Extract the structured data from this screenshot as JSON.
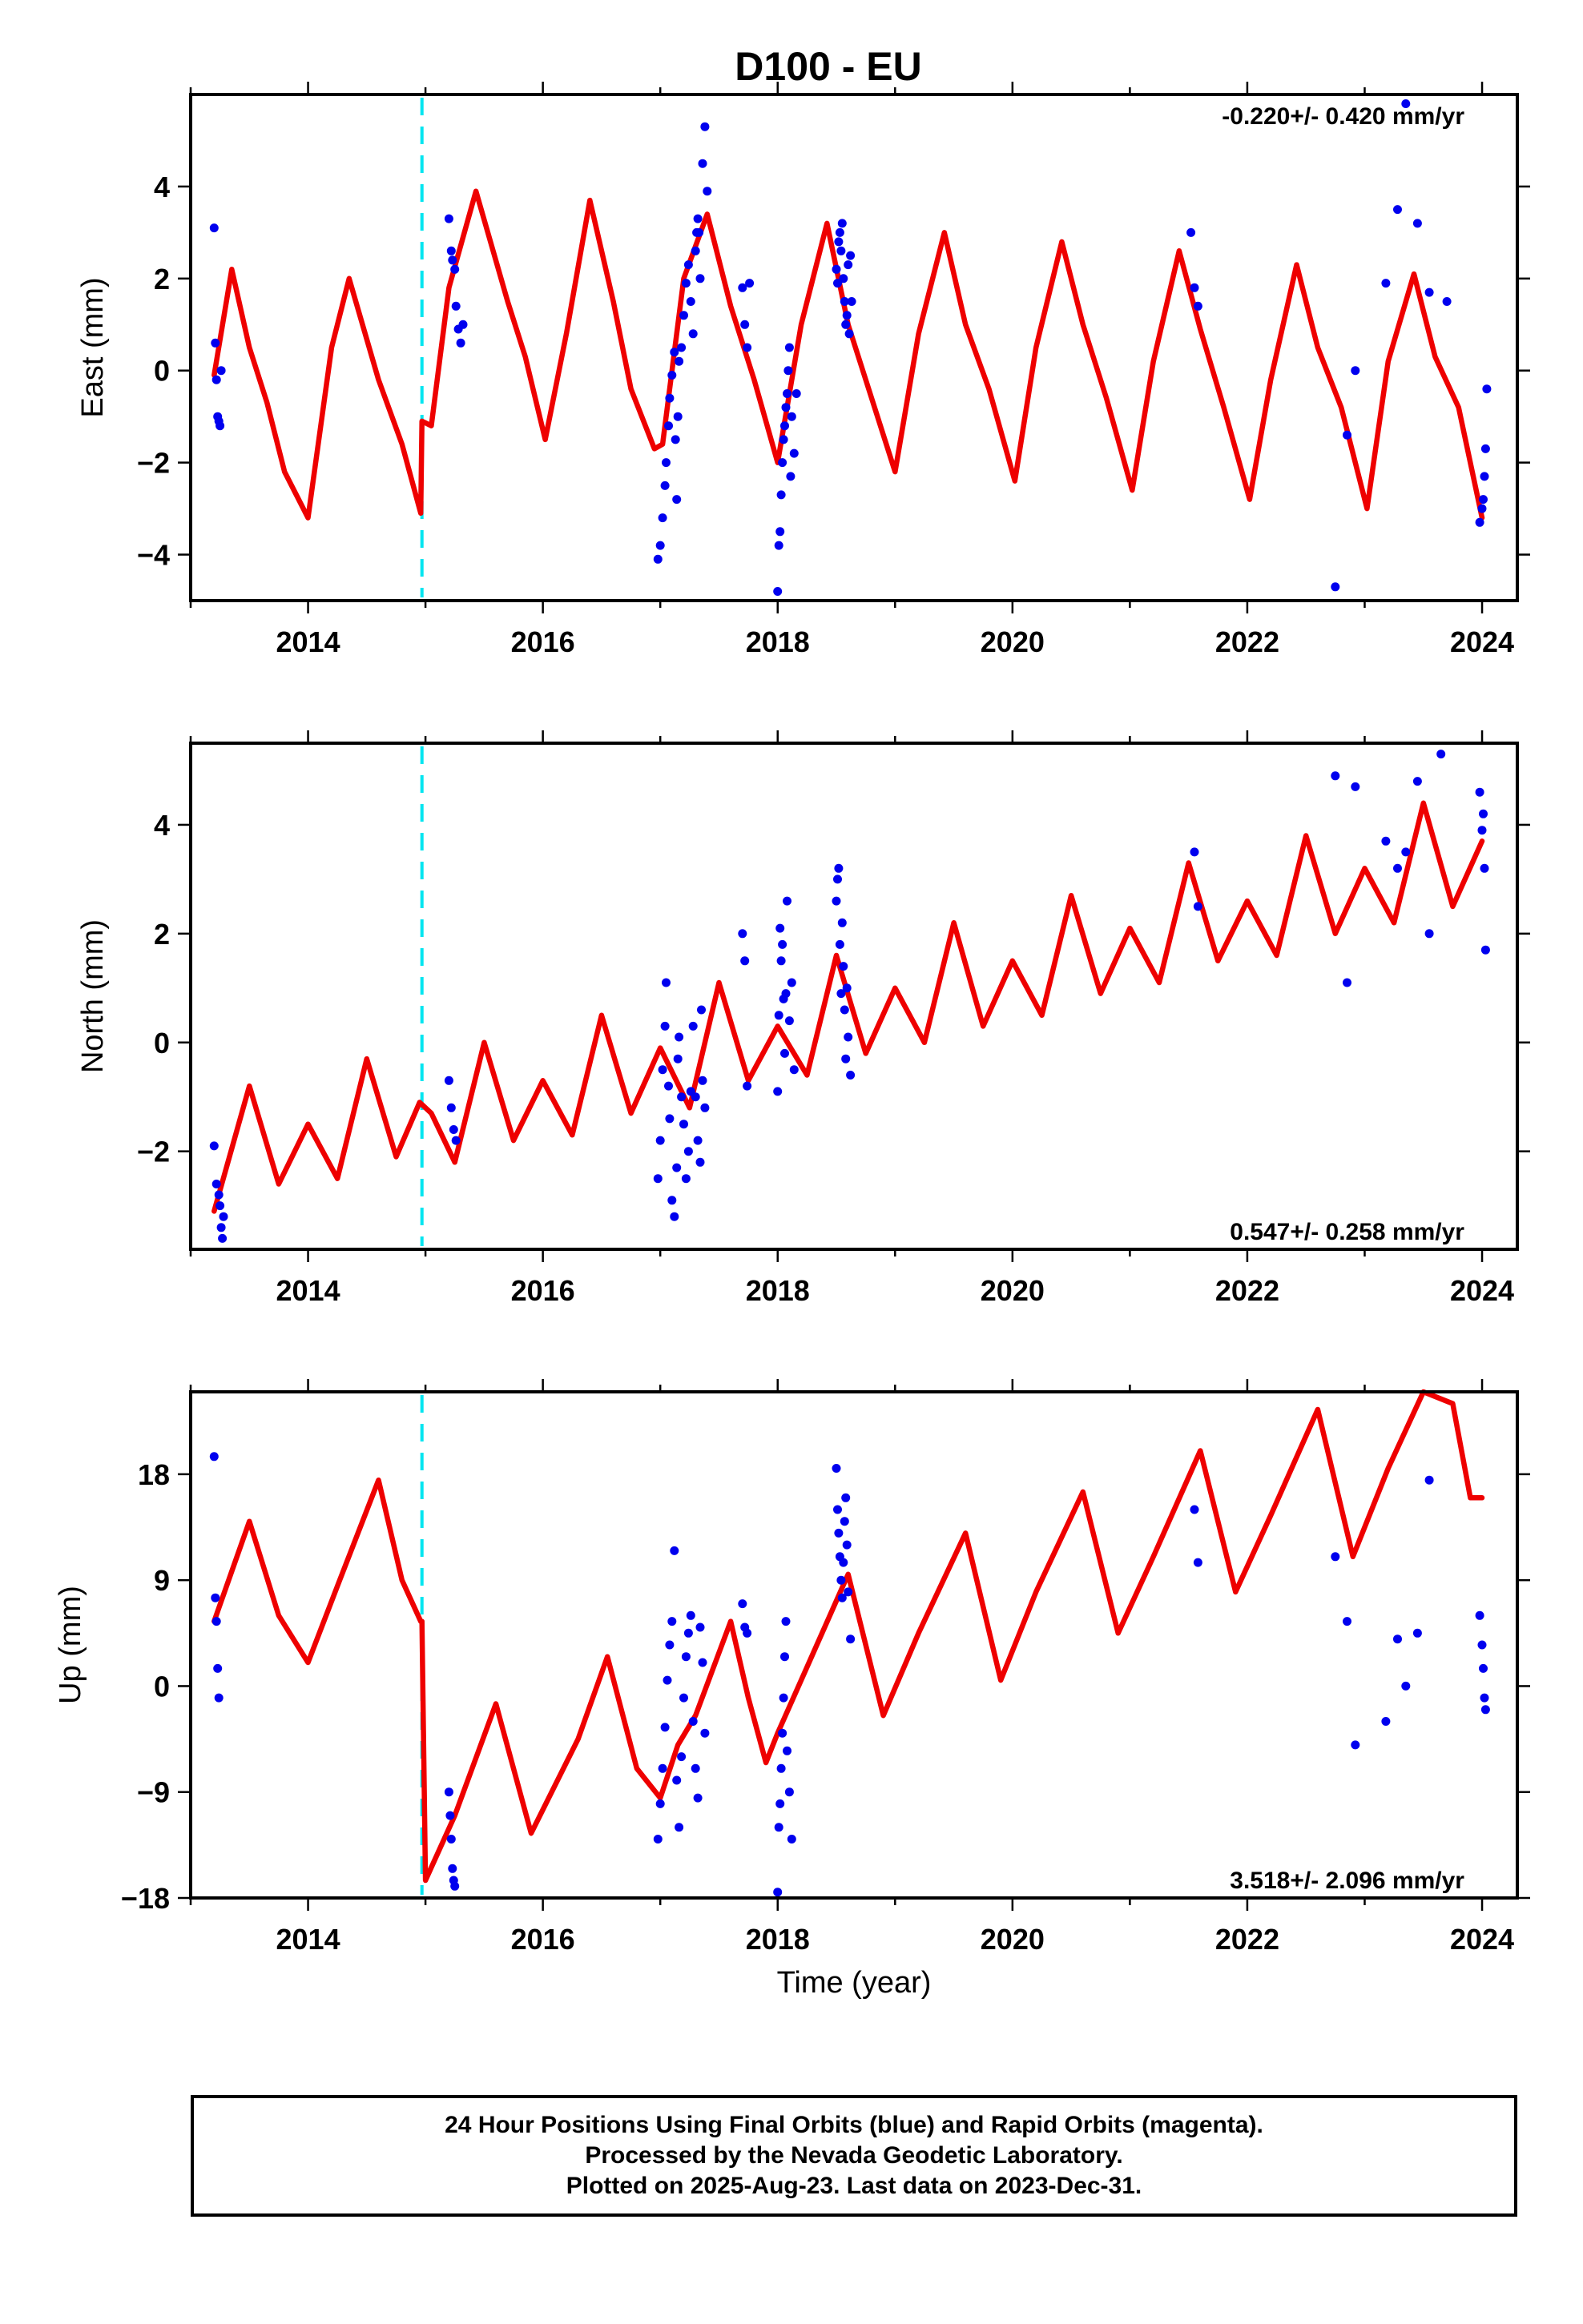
{
  "title": "D100 - EU",
  "xlabel": "Time (year)",
  "footer": {
    "line1": "24 Hour Positions Using Final Orbits (blue) and Rapid Orbits (magenta).",
    "line2": "Processed by the Nevada Geodetic Laboratory.",
    "line3": "Plotted on 2025-Aug-23. Last data on 2023-Dec-31."
  },
  "colors": {
    "final_orbits": "#0000ee",
    "fit": "#ee0000",
    "offset": "#00e5f0"
  },
  "chart_data": [
    {
      "type": "scatter",
      "panel": "east",
      "ylabel": "East (mm)",
      "rate": "-0.220+/- 0.420 mm/yr",
      "rate_position": "top-right",
      "xlim": [
        2013.0,
        2024.3
      ],
      "ylim": [
        -5.0,
        6.0
      ],
      "xticks": [
        2014,
        2016,
        2018,
        2020,
        2022,
        2024
      ],
      "yticks": [
        -4,
        -2,
        0,
        2,
        4
      ],
      "ytick_labels": [
        "−4",
        "−2",
        "0",
        "2",
        "4"
      ],
      "offset_epoch": 2014.97,
      "fit": {
        "x": [
          2013.2,
          2013.35,
          2013.5,
          2013.65,
          2013.8,
          2014.0,
          2014.2,
          2014.35,
          2014.6,
          2014.8,
          2014.96,
          2014.97,
          2015.05,
          2015.2,
          2015.43,
          2015.7,
          2015.85,
          2016.02,
          2016.2,
          2016.4,
          2016.6,
          2016.75,
          2016.95,
          2017.02,
          2017.2,
          2017.4,
          2017.6,
          2017.8,
          2018.0,
          2018.2,
          2018.42,
          2018.6,
          2018.8,
          2019.0,
          2019.2,
          2019.42,
          2019.6,
          2019.8,
          2020.02,
          2020.2,
          2020.42,
          2020.6,
          2020.8,
          2021.02,
          2021.2,
          2021.42,
          2021.6,
          2021.8,
          2022.02,
          2022.2,
          2022.42,
          2022.6,
          2022.8,
          2023.02,
          2023.2,
          2023.42,
          2023.6,
          2023.8,
          2024.0
        ],
        "y": [
          -0.1,
          2.2,
          0.5,
          -0.7,
          -2.2,
          -3.2,
          0.5,
          2.0,
          -0.2,
          -1.6,
          -3.1,
          -1.1,
          -1.2,
          1.8,
          3.9,
          1.5,
          0.3,
          -1.5,
          0.8,
          3.7,
          1.5,
          -0.4,
          -1.7,
          -1.6,
          2.0,
          3.4,
          1.4,
          -0.2,
          -2.0,
          1.0,
          3.2,
          1.0,
          -0.6,
          -2.2,
          0.8,
          3.0,
          1.0,
          -0.4,
          -2.4,
          0.5,
          2.8,
          1.0,
          -0.6,
          -2.6,
          0.2,
          2.6,
          0.9,
          -0.8,
          -2.8,
          -0.2,
          2.3,
          0.5,
          -0.8,
          -3.0,
          0.2,
          2.1,
          0.3,
          -0.8,
          -3.2
        ]
      },
      "points": {
        "x": [
          2013.2,
          2013.21,
          2013.22,
          2013.23,
          2013.24,
          2013.25,
          2013.26,
          2015.2,
          2015.22,
          2015.23,
          2015.25,
          2015.26,
          2015.28,
          2015.3,
          2015.32,
          2016.98,
          2017.0,
          2017.02,
          2017.04,
          2017.05,
          2017.07,
          2017.08,
          2017.1,
          2017.12,
          2017.13,
          2017.14,
          2017.15,
          2017.16,
          2017.18,
          2017.2,
          2017.22,
          2017.24,
          2017.26,
          2017.28,
          2017.3,
          2017.31,
          2017.32,
          2017.33,
          2017.34,
          2017.36,
          2017.38,
          2017.4,
          2017.7,
          2017.72,
          2017.74,
          2017.76,
          2018.0,
          2018.01,
          2018.02,
          2018.03,
          2018.04,
          2018.05,
          2018.06,
          2018.07,
          2018.08,
          2018.09,
          2018.1,
          2018.11,
          2018.12,
          2018.14,
          2018.16,
          2018.5,
          2018.51,
          2018.52,
          2018.53,
          2018.54,
          2018.55,
          2018.56,
          2018.57,
          2018.58,
          2018.59,
          2018.6,
          2018.61,
          2018.62,
          2018.63,
          2021.52,
          2021.55,
          2021.58,
          2022.75,
          2022.85,
          2022.92,
          2023.18,
          2023.28,
          2023.35,
          2023.45,
          2023.55,
          2023.7,
          2023.98,
          2024.0,
          2024.01,
          2024.02,
          2024.03,
          2024.04
        ],
        "y": [
          3.1,
          0.6,
          -0.2,
          -1.0,
          -1.1,
          -1.2,
          0.0,
          3.3,
          2.6,
          2.4,
          2.2,
          1.4,
          0.9,
          0.6,
          1.0,
          -4.1,
          -3.8,
          -3.2,
          -2.5,
          -2.0,
          -1.2,
          -0.6,
          -0.1,
          0.4,
          -1.5,
          -2.8,
          -1.0,
          0.2,
          0.5,
          1.2,
          1.9,
          2.3,
          1.5,
          0.8,
          2.6,
          3.0,
          3.3,
          3.0,
          2.0,
          4.5,
          5.3,
          3.9,
          1.8,
          1.0,
          0.5,
          1.9,
          -4.8,
          -3.8,
          -3.5,
          -2.7,
          -2.0,
          -1.5,
          -1.2,
          -0.8,
          -0.5,
          0.0,
          0.5,
          -2.3,
          -1.0,
          -1.8,
          -0.5,
          2.2,
          1.9,
          2.8,
          3.0,
          2.6,
          3.2,
          2.0,
          1.5,
          1.0,
          1.2,
          2.3,
          0.8,
          2.5,
          1.5,
          3.0,
          1.8,
          1.4,
          -4.7,
          -1.4,
          0.0,
          1.9,
          3.5,
          5.8,
          3.2,
          1.7,
          1.5,
          -3.3,
          -3.0,
          -2.8,
          -2.3,
          -1.7,
          -0.4
        ]
      }
    },
    {
      "type": "scatter",
      "panel": "north",
      "ylabel": "North (mm)",
      "rate": "0.547+/- 0.258 mm/yr",
      "rate_position": "bottom-right",
      "xlim": [
        2013.0,
        2024.3
      ],
      "ylim": [
        -3.8,
        5.5
      ],
      "xticks": [
        2014,
        2016,
        2018,
        2020,
        2022,
        2024
      ],
      "yticks": [
        -2,
        0,
        2,
        4
      ],
      "ytick_labels": [
        "−2",
        "0",
        "2",
        "4"
      ],
      "offset_epoch": 2014.97,
      "fit": {
        "x": [
          2013.2,
          2013.5,
          2013.75,
          2014.0,
          2014.25,
          2014.5,
          2014.75,
          2014.95,
          2015.05,
          2015.25,
          2015.5,
          2015.75,
          2016.0,
          2016.25,
          2016.5,
          2016.75,
          2017.0,
          2017.25,
          2017.5,
          2017.75,
          2018.0,
          2018.25,
          2018.5,
          2018.75,
          2019.0,
          2019.25,
          2019.5,
          2019.75,
          2020.0,
          2020.25,
          2020.5,
          2020.75,
          2021.0,
          2021.25,
          2021.5,
          2021.75,
          2022.0,
          2022.25,
          2022.5,
          2022.75,
          2023.0,
          2023.25,
          2023.5,
          2023.75,
          2024.0
        ],
        "y": [
          -3.1,
          -0.8,
          -2.6,
          -1.5,
          -2.5,
          -0.3,
          -2.1,
          -1.1,
          -1.3,
          -2.2,
          0.0,
          -1.8,
          -0.7,
          -1.7,
          0.5,
          -1.3,
          -0.1,
          -1.2,
          1.1,
          -0.7,
          0.3,
          -0.6,
          1.6,
          -0.2,
          1.0,
          0.0,
          2.2,
          0.3,
          1.5,
          0.5,
          2.7,
          0.9,
          2.1,
          1.1,
          3.3,
          1.5,
          2.6,
          1.6,
          3.8,
          2.0,
          3.2,
          2.2,
          4.4,
          2.5,
          3.7
        ]
      },
      "points": {
        "x": [
          2013.2,
          2013.22,
          2013.24,
          2013.25,
          2013.26,
          2013.27,
          2013.28,
          2015.2,
          2015.22,
          2015.24,
          2015.26,
          2016.98,
          2017.0,
          2017.02,
          2017.04,
          2017.05,
          2017.07,
          2017.08,
          2017.1,
          2017.12,
          2017.14,
          2017.15,
          2017.16,
          2017.18,
          2017.2,
          2017.22,
          2017.24,
          2017.26,
          2017.28,
          2017.3,
          2017.32,
          2017.34,
          2017.35,
          2017.36,
          2017.38,
          2017.7,
          2017.72,
          2017.74,
          2018.0,
          2018.01,
          2018.02,
          2018.03,
          2018.04,
          2018.05,
          2018.06,
          2018.07,
          2018.08,
          2018.1,
          2018.12,
          2018.14,
          2018.5,
          2018.51,
          2018.52,
          2018.53,
          2018.54,
          2018.55,
          2018.56,
          2018.57,
          2018.58,
          2018.59,
          2018.6,
          2018.62,
          2021.55,
          2021.58,
          2022.75,
          2022.85,
          2022.92,
          2023.18,
          2023.28,
          2023.35,
          2023.45,
          2023.55,
          2023.65,
          2023.98,
          2024.0,
          2024.01,
          2024.02,
          2024.03
        ],
        "y": [
          -1.9,
          -2.6,
          -2.8,
          -3.0,
          -3.4,
          -3.6,
          -3.2,
          -0.7,
          -1.2,
          -1.6,
          -1.8,
          -2.5,
          -1.8,
          -0.5,
          0.3,
          1.1,
          -0.8,
          -1.4,
          -2.9,
          -3.2,
          -2.3,
          -0.3,
          0.1,
          -1.0,
          -1.5,
          -2.5,
          -2.0,
          -0.9,
          0.3,
          -1.0,
          -1.8,
          -2.2,
          0.6,
          -0.7,
          -1.2,
          2.0,
          1.5,
          -0.8,
          -0.9,
          0.5,
          2.1,
          1.5,
          1.8,
          0.8,
          -0.2,
          0.9,
          2.6,
          0.4,
          1.1,
          -0.5,
          2.6,
          3.0,
          3.2,
          1.8,
          0.9,
          2.2,
          1.4,
          0.6,
          -0.3,
          1.0,
          0.1,
          -0.6,
          3.5,
          2.5,
          4.9,
          1.1,
          4.7,
          3.7,
          3.2,
          3.5,
          4.8,
          2.0,
          5.3,
          4.6,
          3.9,
          4.2,
          3.2,
          1.7
        ]
      }
    },
    {
      "type": "scatter",
      "panel": "up",
      "ylabel": "Up (mm)",
      "rate": "3.518+/- 2.096 mm/yr",
      "rate_position": "bottom-right",
      "xlim": [
        2013.0,
        2024.3
      ],
      "ylim": [
        -18.0,
        25.0
      ],
      "xticks": [
        2014,
        2016,
        2018,
        2020,
        2022,
        2024
      ],
      "yticks": [
        -18,
        -9,
        0,
        9,
        18
      ],
      "ytick_labels": [
        "−18",
        "−9",
        "0",
        "9",
        "18"
      ],
      "offset_epoch": 2014.97,
      "fit": {
        "x": [
          2013.2,
          2013.5,
          2013.75,
          2014.0,
          2014.25,
          2014.6,
          2014.8,
          2014.96,
          2014.97,
          2015.0,
          2015.25,
          2015.6,
          2015.9,
          2016.3,
          2016.55,
          2016.8,
          2017.0,
          2017.15,
          2017.3,
          2017.6,
          2017.75,
          2017.9,
          2018.0,
          2018.2,
          2018.6,
          2018.9,
          2019.2,
          2019.6,
          2019.9,
          2020.2,
          2020.6,
          2020.9,
          2021.2,
          2021.6,
          2021.9,
          2022.2,
          2022.6,
          2022.9,
          2023.2,
          2023.5,
          2023.75,
          2023.9,
          2024.0
        ],
        "y": [
          5.5,
          14.0,
          6.0,
          2.0,
          8.5,
          17.5,
          9.0,
          5.5,
          5.5,
          -16.5,
          -11.0,
          -1.5,
          -12.5,
          -4.5,
          2.5,
          -7.0,
          -9.5,
          -5.0,
          -2.5,
          5.5,
          -1.0,
          -6.5,
          -4.0,
          0.5,
          9.5,
          -2.5,
          4.5,
          13.0,
          0.5,
          8.0,
          16.5,
          4.5,
          11.0,
          20.0,
          8.0,
          14.5,
          23.5,
          11.0,
          18.5,
          25.0,
          24.0,
          16.0,
          16.0
        ]
      },
      "points": {
        "x": [
          2013.2,
          2013.21,
          2013.22,
          2013.23,
          2013.24,
          2015.2,
          2015.21,
          2015.22,
          2015.23,
          2015.24,
          2015.25,
          2016.98,
          2017.0,
          2017.02,
          2017.04,
          2017.06,
          2017.08,
          2017.1,
          2017.12,
          2017.14,
          2017.16,
          2017.18,
          2017.2,
          2017.22,
          2017.24,
          2017.26,
          2017.28,
          2017.3,
          2017.32,
          2017.34,
          2017.36,
          2017.38,
          2017.7,
          2017.72,
          2017.74,
          2018.0,
          2018.01,
          2018.02,
          2018.03,
          2018.04,
          2018.05,
          2018.06,
          2018.07,
          2018.08,
          2018.1,
          2018.12,
          2018.5,
          2018.51,
          2018.52,
          2018.53,
          2018.54,
          2018.55,
          2018.56,
          2018.57,
          2018.58,
          2018.59,
          2018.6,
          2018.62,
          2021.55,
          2021.58,
          2022.75,
          2022.85,
          2022.92,
          2023.18,
          2023.28,
          2023.35,
          2023.45,
          2023.55,
          2023.98,
          2024.0,
          2024.01,
          2024.02,
          2024.03
        ],
        "y": [
          19.5,
          7.5,
          5.5,
          1.5,
          -1.0,
          -9.0,
          -11.0,
          -13.0,
          -15.5,
          -16.5,
          -17.0,
          -13.0,
          -10.0,
          -7.0,
          -3.5,
          0.5,
          3.5,
          5.5,
          11.5,
          -8.0,
          -12.0,
          -6.0,
          -1.0,
          2.5,
          4.5,
          6.0,
          -3.0,
          -7.0,
          -9.5,
          5.0,
          2.0,
          -4.0,
          7.0,
          5.0,
          4.5,
          -17.5,
          -12.0,
          -10.0,
          -7.0,
          -4.0,
          -1.0,
          2.5,
          5.5,
          -5.5,
          -9.0,
          -13.0,
          18.5,
          15.0,
          13.0,
          11.0,
          9.0,
          7.5,
          10.5,
          14.0,
          16.0,
          12.0,
          8.0,
          4.0,
          15.0,
          10.5,
          11.0,
          5.5,
          -5.0,
          -3.0,
          4.0,
          0.0,
          4.5,
          17.5,
          6.0,
          3.5,
          1.5,
          -1.0,
          -2.0
        ]
      }
    }
  ]
}
